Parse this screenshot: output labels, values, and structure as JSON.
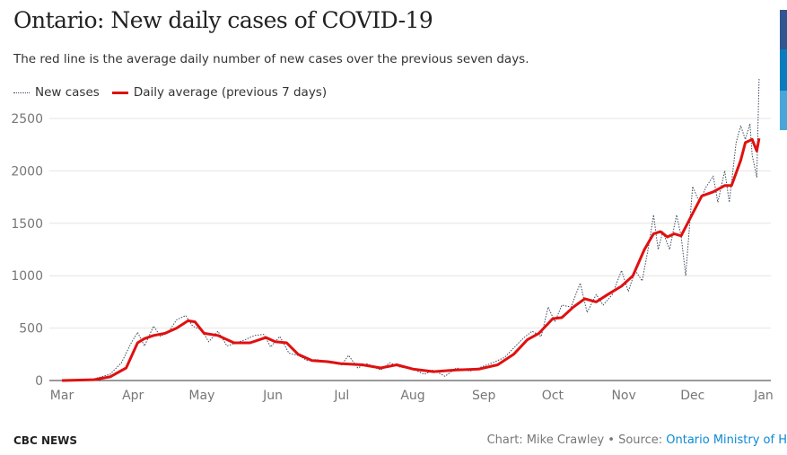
{
  "title": "Ontario: New daily cases of COVID-19",
  "subtitle": "The red line is the average daily number of new cases over the previous seven days.",
  "footer": {
    "brand": "CBC NEWS",
    "credit": "Chart: Mike Crawley • Source: ",
    "source_link": "Ontario Ministry of H"
  },
  "side_bar_colors": [
    "#2f5690",
    "#0a7bbd",
    "#48a6d8"
  ],
  "chart_data": {
    "type": "line",
    "title": "Ontario: New daily cases of COVID-19",
    "xlabel": "",
    "ylabel": "",
    "ylim": [
      0,
      2900
    ],
    "yticks": [
      0,
      500,
      1000,
      1500,
      2000,
      2500
    ],
    "xticks": [
      {
        "label": "Mar",
        "date": "2020-03-01"
      },
      {
        "label": "Apr",
        "date": "2020-04-01"
      },
      {
        "label": "May",
        "date": "2020-05-01"
      },
      {
        "label": "Jun",
        "date": "2020-06-01"
      },
      {
        "label": "Jul",
        "date": "2020-07-01"
      },
      {
        "label": "Aug",
        "date": "2020-08-01"
      },
      {
        "label": "Sep",
        "date": "2020-09-01"
      },
      {
        "label": "Oct",
        "date": "2020-10-01"
      },
      {
        "label": "Nov",
        "date": "2020-11-01"
      },
      {
        "label": "Dec",
        "date": "2020-12-01"
      },
      {
        "label": "Jan",
        "date": "2021-01-01"
      }
    ],
    "grid": true,
    "legend_placement": "top-left",
    "series": [
      {
        "name": "New cases",
        "color": "#3a4a5c",
        "style": "dotted",
        "points": [
          [
            "2020-03-01",
            0
          ],
          [
            "2020-03-15",
            15
          ],
          [
            "2020-03-22",
            60
          ],
          [
            "2020-03-27",
            170
          ],
          [
            "2020-03-31",
            350
          ],
          [
            "2020-04-03",
            460
          ],
          [
            "2020-04-06",
            330
          ],
          [
            "2020-04-10",
            520
          ],
          [
            "2020-04-13",
            420
          ],
          [
            "2020-04-17",
            480
          ],
          [
            "2020-04-20",
            580
          ],
          [
            "2020-04-24",
            620
          ],
          [
            "2020-04-27",
            520
          ],
          [
            "2020-05-01",
            480
          ],
          [
            "2020-05-04",
            370
          ],
          [
            "2020-05-08",
            470
          ],
          [
            "2020-05-12",
            330
          ],
          [
            "2020-05-16",
            360
          ],
          [
            "2020-05-20",
            390
          ],
          [
            "2020-05-24",
            430
          ],
          [
            "2020-05-28",
            440
          ],
          [
            "2020-05-31",
            320
          ],
          [
            "2020-06-04",
            420
          ],
          [
            "2020-06-08",
            260
          ],
          [
            "2020-06-12",
            240
          ],
          [
            "2020-06-16",
            190
          ],
          [
            "2020-06-20",
            200
          ],
          [
            "2020-06-25",
            170
          ],
          [
            "2020-07-01",
            150
          ],
          [
            "2020-07-04",
            240
          ],
          [
            "2020-07-08",
            120
          ],
          [
            "2020-07-12",
            160
          ],
          [
            "2020-07-18",
            100
          ],
          [
            "2020-07-22",
            170
          ],
          [
            "2020-07-26",
            130
          ],
          [
            "2020-08-01",
            110
          ],
          [
            "2020-08-06",
            60
          ],
          [
            "2020-08-10",
            100
          ],
          [
            "2020-08-15",
            40
          ],
          [
            "2020-08-20",
            120
          ],
          [
            "2020-08-26",
            90
          ],
          [
            "2020-08-31",
            130
          ],
          [
            "2020-09-05",
            170
          ],
          [
            "2020-09-10",
            220
          ],
          [
            "2020-09-14",
            310
          ],
          [
            "2020-09-18",
            400
          ],
          [
            "2020-09-22",
            470
          ],
          [
            "2020-09-26",
            420
          ],
          [
            "2020-09-29",
            700
          ],
          [
            "2020-10-02",
            560
          ],
          [
            "2020-10-05",
            720
          ],
          [
            "2020-10-09",
            700
          ],
          [
            "2020-10-13",
            930
          ],
          [
            "2020-10-16",
            650
          ],
          [
            "2020-10-20",
            820
          ],
          [
            "2020-10-23",
            720
          ],
          [
            "2020-10-27",
            820
          ],
          [
            "2020-10-31",
            1050
          ],
          [
            "2020-11-03",
            850
          ],
          [
            "2020-11-06",
            1050
          ],
          [
            "2020-11-09",
            950
          ],
          [
            "2020-11-12",
            1300
          ],
          [
            "2020-11-14",
            1580
          ],
          [
            "2020-11-16",
            1250
          ],
          [
            "2020-11-18,",
            1420
          ],
          [
            "2020-11-21",
            1250
          ],
          [
            "2020-11-24",
            1580
          ],
          [
            "2020-11-26",
            1380
          ],
          [
            "2020-11-28",
            1000
          ],
          [
            "2020-12-01",
            1850
          ],
          [
            "2020-12-04",
            1700
          ],
          [
            "2020-12-07",
            1850
          ],
          [
            "2020-12-10",
            1950
          ],
          [
            "2020-12-12",
            1700
          ],
          [
            "2020-12-15",
            2000
          ],
          [
            "2020-12-17",
            1700
          ],
          [
            "2020-12-20",
            2270
          ],
          [
            "2020-12-22",
            2430
          ],
          [
            "2020-12-24",
            2300
          ],
          [
            "2020-12-26",
            2450
          ],
          [
            "2020-12-27",
            2150
          ],
          [
            "2020-12-29",
            1940
          ],
          [
            "2020-12-30",
            2880
          ]
        ]
      },
      {
        "name": "Daily average (previous 7 days)",
        "color": "#e01010",
        "style": "solid",
        "points": [
          [
            "2020-03-01",
            0
          ],
          [
            "2020-03-15",
            8
          ],
          [
            "2020-03-22",
            35
          ],
          [
            "2020-03-29",
            120
          ],
          [
            "2020-04-03",
            360
          ],
          [
            "2020-04-06",
            400
          ],
          [
            "2020-04-10",
            430
          ],
          [
            "2020-04-15",
            450
          ],
          [
            "2020-04-20",
            500
          ],
          [
            "2020-04-25",
            570
          ],
          [
            "2020-04-28",
            560
          ],
          [
            "2020-05-02",
            450
          ],
          [
            "2020-05-08",
            430
          ],
          [
            "2020-05-15",
            360
          ],
          [
            "2020-05-22",
            360
          ],
          [
            "2020-05-29",
            410
          ],
          [
            "2020-06-02",
            370
          ],
          [
            "2020-06-07",
            360
          ],
          [
            "2020-06-12",
            250
          ],
          [
            "2020-06-18",
            190
          ],
          [
            "2020-06-25",
            180
          ],
          [
            "2020-07-01",
            160
          ],
          [
            "2020-07-10",
            150
          ],
          [
            "2020-07-18",
            120
          ],
          [
            "2020-07-25",
            150
          ],
          [
            "2020-08-01",
            110
          ],
          [
            "2020-08-10",
            85
          ],
          [
            "2020-08-20",
            100
          ],
          [
            "2020-08-30",
            110
          ],
          [
            "2020-09-07",
            150
          ],
          [
            "2020-09-14",
            250
          ],
          [
            "2020-09-20",
            390
          ],
          [
            "2020-09-25",
            450
          ],
          [
            "2020-10-01",
            590
          ],
          [
            "2020-10-05",
            600
          ],
          [
            "2020-10-10",
            700
          ],
          [
            "2020-10-15",
            780
          ],
          [
            "2020-10-20",
            750
          ],
          [
            "2020-10-25",
            820
          ],
          [
            "2020-10-31",
            900
          ],
          [
            "2020-11-05",
            1000
          ],
          [
            "2020-11-10",
            1250
          ],
          [
            "2020-11-14",
            1400
          ],
          [
            "2020-11-17",
            1420
          ],
          [
            "2020-11-20",
            1370
          ],
          [
            "2020-11-23",
            1400
          ],
          [
            "2020-11-26",
            1380
          ],
          [
            "2020-11-30",
            1550
          ],
          [
            "2020-12-05",
            1760
          ],
          [
            "2020-12-10",
            1800
          ],
          [
            "2020-12-15",
            1860
          ],
          [
            "2020-12-18",
            1860
          ],
          [
            "2020-12-22",
            2100
          ],
          [
            "2020-12-24",
            2270
          ],
          [
            "2020-12-27",
            2300
          ],
          [
            "2020-12-29",
            2190
          ],
          [
            "2020-12-30",
            2310
          ]
        ]
      }
    ]
  }
}
